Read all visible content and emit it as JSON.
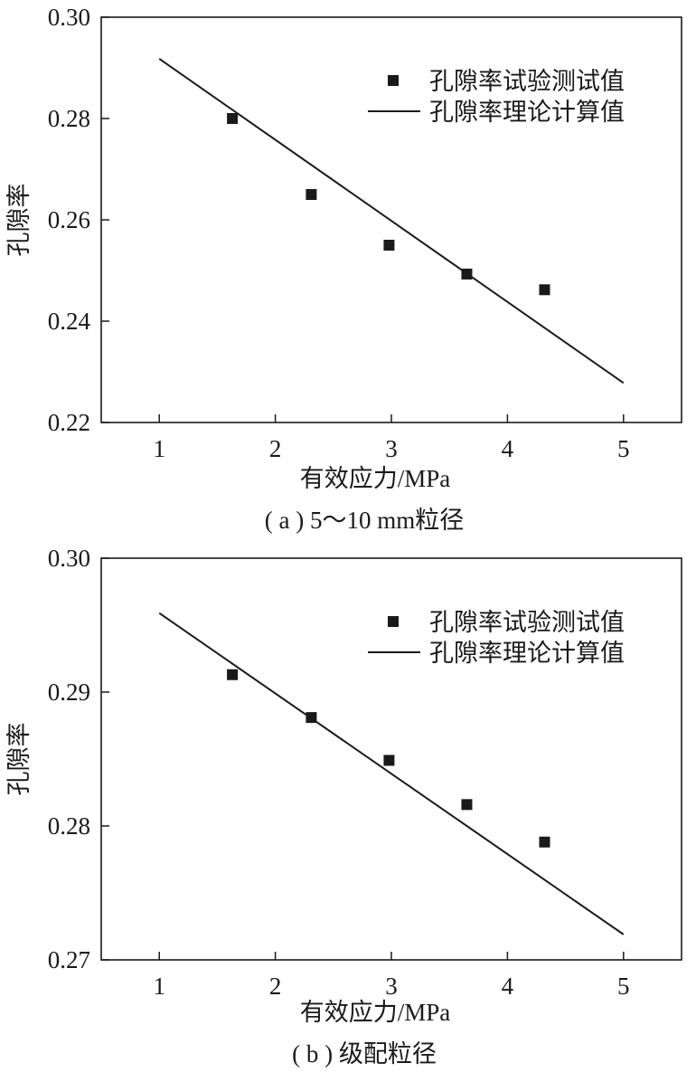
{
  "chart_data": [
    {
      "type": "scatter",
      "caption": "( a ) 5～10 mm粒径",
      "xlabel": "有效应力/MPa",
      "ylabel": "孔隙率",
      "xlim": [
        0.5,
        5.5
      ],
      "ylim": [
        0.22,
        0.3
      ],
      "xticks": [
        1,
        2,
        3,
        4,
        5
      ],
      "yticks": [
        0.22,
        0.24,
        0.26,
        0.28,
        0.3
      ],
      "ytick_labels": [
        "0.22",
        "0.24",
        "0.26",
        "0.28",
        "0.30"
      ],
      "legend_position": "top-right",
      "grid": false,
      "series": [
        {
          "name": "孔隙率试验测试值",
          "kind": "scatter",
          "marker": "square",
          "color": "#1a1a1a",
          "x": [
            1.63,
            2.31,
            2.98,
            3.65,
            4.32
          ],
          "y": [
            0.28,
            0.265,
            0.255,
            0.2493,
            0.2462
          ]
        },
        {
          "name": "孔隙率理论计算值",
          "kind": "line",
          "color": "#1a1a1a",
          "x": [
            1.0,
            5.0
          ],
          "y": [
            0.2918,
            0.2278
          ]
        }
      ]
    },
    {
      "type": "scatter",
      "caption": "( b ) 级配粒径",
      "xlabel": "有效应力/MPa",
      "ylabel": "孔隙率",
      "xlim": [
        0.5,
        5.5
      ],
      "ylim": [
        0.27,
        0.3
      ],
      "xticks": [
        1,
        2,
        3,
        4,
        5
      ],
      "yticks": [
        0.27,
        0.28,
        0.29,
        0.3
      ],
      "ytick_labels": [
        "0.27",
        "0.28",
        "0.29",
        "0.30"
      ],
      "legend_position": "top-right",
      "grid": false,
      "series": [
        {
          "name": "孔隙率试验测试值",
          "kind": "scatter",
          "marker": "square",
          "color": "#1a1a1a",
          "x": [
            1.63,
            2.31,
            2.98,
            3.65,
            4.32
          ],
          "y": [
            0.2913,
            0.2881,
            0.2849,
            0.2816,
            0.2788
          ]
        },
        {
          "name": "孔隙率理论计算值",
          "kind": "line",
          "color": "#1a1a1a",
          "x": [
            1.0,
            5.0
          ],
          "y": [
            0.2959,
            0.2719
          ]
        }
      ]
    }
  ]
}
